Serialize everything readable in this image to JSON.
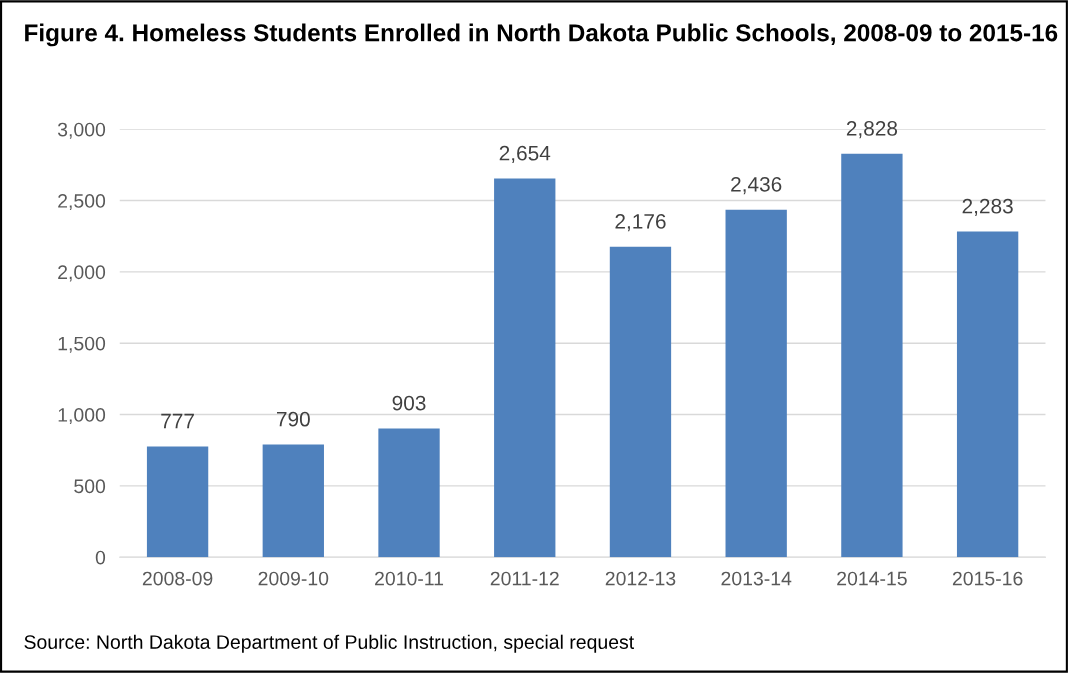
{
  "chart_data": {
    "type": "bar",
    "title": "Figure 4. Homeless Students Enrolled in North Dakota Public Schools, 2008-09 to 2015-16",
    "categories": [
      "2008-09",
      "2009-10",
      "2010-11",
      "2011-12",
      "2012-13",
      "2013-14",
      "2014-15",
      "2015-16"
    ],
    "values": [
      777,
      790,
      903,
      2654,
      2176,
      2436,
      2828,
      2283
    ],
    "color": "#4f81bd",
    "ylim": [
      0,
      3000
    ],
    "yticks": [
      0,
      500,
      {
        "value": 1000,
        "label": "1,000"
      },
      {
        "value": 1500,
        "label": "1,500"
      },
      {
        "value": 2000,
        "label": "2,000"
      },
      {
        "value": 2500,
        "label": "2,500"
      },
      {
        "value": 3000,
        "label": "3,000"
      }
    ],
    "value_labels": [
      "777",
      "790",
      "903",
      "2,654",
      "2,176",
      "2,436",
      "2,828",
      "2,283"
    ],
    "grid": "y",
    "annotations": [
      "Source: North Dakota Department of Public Instruction, special request"
    ]
  }
}
